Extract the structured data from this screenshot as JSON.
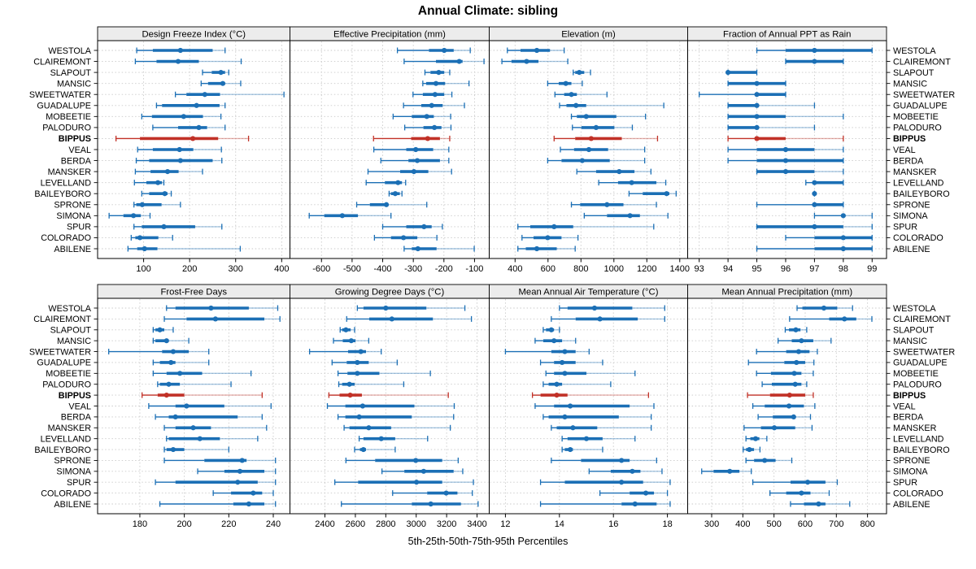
{
  "chart_data": {
    "type": "percentile-dotplot",
    "title": "Annual Climate: sibling",
    "xlabel": "5th-25th-50th-75th-95th Percentiles",
    "percentile_labels": [
      "5th",
      "25th",
      "50th",
      "75th",
      "95th"
    ],
    "highlight": "BIPPUS",
    "colors": {
      "series": "#1b6fb5",
      "highlight": "#c13127",
      "strip_bg": "#ececec",
      "grid": "#c9c9c9",
      "border": "#000000"
    },
    "locations": [
      "WESTOLA",
      "CLAIREMONT",
      "SLAPOUT",
      "MANSIC",
      "SWEETWATER",
      "GUADALUPE",
      "MOBEETIE",
      "PALODURO",
      "BIPPUS",
      "VEAL",
      "BERDA",
      "MANSKER",
      "LEVELLAND",
      "BAILEYBORO",
      "SPRONE",
      "SIMONA",
      "SPUR",
      "COLORADO",
      "ABILENE"
    ],
    "panels": [
      {
        "title": "Design Freeze Index (°C)",
        "xlim": [
          0,
          418
        ],
        "ticks": [
          100,
          200,
          300,
          400
        ],
        "values": [
          [
            85,
            120,
            180,
            250,
            277
          ],
          [
            82,
            128,
            175,
            220,
            312
          ],
          [
            228,
            248,
            268,
            277,
            285
          ],
          [
            225,
            240,
            272,
            277,
            311
          ],
          [
            169,
            193,
            233,
            266,
            405
          ],
          [
            128,
            140,
            215,
            265,
            277
          ],
          [
            96,
            118,
            187,
            229,
            268
          ],
          [
            120,
            175,
            220,
            238,
            277
          ],
          [
            40,
            92,
            207,
            262,
            328
          ],
          [
            87,
            120,
            178,
            208,
            269
          ],
          [
            84,
            112,
            180,
            250,
            270
          ],
          [
            82,
            115,
            152,
            176,
            228
          ],
          [
            80,
            106,
            131,
            140,
            144
          ],
          [
            96,
            112,
            146,
            152,
            160
          ],
          [
            79,
            84,
            97,
            139,
            180
          ],
          [
            25,
            56,
            78,
            94,
            114
          ],
          [
            79,
            96,
            144,
            212,
            270
          ],
          [
            73,
            82,
            92,
            132,
            163
          ],
          [
            66,
            86,
            102,
            130,
            310
          ]
        ]
      },
      {
        "title": "Effective Precipitation (mm)",
        "xlim": [
          -703,
          -52
        ],
        "ticks": [
          -600,
          -500,
          -400,
          -300,
          -200,
          -100
        ],
        "values": [
          [
            -352,
            -249,
            -199,
            -168,
            -114
          ],
          [
            -330,
            -226,
            -150,
            -139,
            -69
          ],
          [
            -262,
            -244,
            -217,
            -199,
            -181
          ],
          [
            -269,
            -258,
            -226,
            -196,
            -118
          ],
          [
            -301,
            -269,
            -229,
            -199,
            -174
          ],
          [
            -332,
            -274,
            -240,
            -204,
            -133
          ],
          [
            -366,
            -305,
            -256,
            -233,
            -178
          ],
          [
            -328,
            -267,
            -231,
            -208,
            -177
          ],
          [
            -430,
            -307,
            -253,
            -213,
            -181
          ],
          [
            -429,
            -323,
            -292,
            -235,
            -184
          ],
          [
            -406,
            -316,
            -287,
            -213,
            -184
          ],
          [
            -448,
            -343,
            -298,
            -251,
            -175
          ],
          [
            -454,
            -393,
            -350,
            -337,
            -325
          ],
          [
            -379,
            -373,
            -359,
            -344,
            -337
          ],
          [
            -485,
            -442,
            -388,
            -382,
            -256
          ],
          [
            -640,
            -591,
            -532,
            -481,
            -373
          ],
          [
            -400,
            -323,
            -265,
            -240,
            -205
          ],
          [
            -427,
            -373,
            -332,
            -287,
            -223
          ],
          [
            -330,
            -305,
            -285,
            -224,
            -101
          ]
        ]
      },
      {
        "title": "Elevation (m)",
        "xlim": [
          243,
          1448
        ],
        "ticks": [
          400,
          600,
          800,
          1000,
          1200,
          1400
        ],
        "values": [
          [
            353,
            433,
            532,
            612,
            698
          ],
          [
            320,
            378,
            470,
            542,
            720
          ],
          [
            753,
            765,
            790,
            820,
            858
          ],
          [
            598,
            665,
            708,
            742,
            808
          ],
          [
            642,
            698,
            742,
            775,
            958
          ],
          [
            670,
            712,
            770,
            832,
            1303
          ],
          [
            742,
            775,
            832,
            1015,
            1192
          ],
          [
            748,
            803,
            892,
            1003,
            1112
          ],
          [
            637,
            765,
            862,
            1048,
            1265
          ],
          [
            675,
            758,
            848,
            965,
            1187
          ],
          [
            598,
            682,
            808,
            975,
            1187
          ],
          [
            775,
            892,
            1032,
            1125,
            1225
          ],
          [
            908,
            1025,
            1108,
            1258,
            1315
          ],
          [
            1092,
            1175,
            1320,
            1337,
            1378
          ],
          [
            742,
            795,
            958,
            1058,
            1258
          ],
          [
            820,
            958,
            1098,
            1158,
            1328
          ],
          [
            417,
            492,
            637,
            753,
            1242
          ],
          [
            442,
            512,
            598,
            682,
            782
          ],
          [
            417,
            465,
            532,
            653,
            765
          ]
        ]
      },
      {
        "title": "Fraction of Annual PPT as Rain",
        "xlim": [
          92.6,
          99.5
        ],
        "ticks": [
          93,
          94,
          95,
          96,
          97,
          98,
          99
        ],
        "values": [
          [
            95,
            96,
            97,
            99,
            99
          ],
          [
            96,
            96,
            97,
            98,
            98
          ],
          [
            94,
            94,
            94,
            95,
            95
          ],
          [
            94,
            94,
            95,
            96,
            96
          ],
          [
            93,
            95,
            95,
            96,
            96
          ],
          [
            94,
            94,
            95,
            95,
            97
          ],
          [
            94,
            94,
            95,
            96,
            98
          ],
          [
            94,
            94,
            95,
            95,
            97
          ],
          [
            94,
            95,
            95,
            96,
            98
          ],
          [
            94,
            95,
            96,
            97,
            98
          ],
          [
            94,
            95,
            96,
            98,
            98
          ],
          [
            95,
            95,
            96,
            97,
            98
          ],
          [
            96.7,
            97,
            97,
            98,
            98
          ],
          [
            97,
            97,
            97,
            97,
            97
          ],
          [
            95,
            97,
            97,
            98,
            98
          ],
          [
            97,
            98,
            98,
            98,
            99
          ],
          [
            95,
            95,
            97,
            98,
            99
          ],
          [
            96,
            97,
            98,
            99,
            99
          ],
          [
            95,
            97,
            98,
            99,
            99
          ]
        ]
      },
      {
        "title": "Frost-Free Days",
        "xlim": [
          161,
          247.5
        ],
        "ticks": [
          180,
          200,
          220,
          240
        ],
        "values": [
          [
            192,
            196,
            212,
            229,
            242
          ],
          [
            191,
            201,
            214,
            236,
            243
          ],
          [
            186,
            187,
            189,
            191,
            195
          ],
          [
            186,
            187,
            192,
            193,
            202
          ],
          [
            166,
            190,
            195,
            202,
            211
          ],
          [
            186,
            189,
            194,
            196,
            211
          ],
          [
            186,
            192,
            198,
            208,
            230
          ],
          [
            188,
            189,
            193,
            198,
            221
          ],
          [
            181,
            188,
            192,
            200,
            235
          ],
          [
            184,
            196,
            201,
            218,
            239
          ],
          [
            187,
            193,
            196,
            224,
            235
          ],
          [
            191,
            196,
            204,
            212,
            237
          ],
          [
            192,
            193,
            207,
            216,
            233
          ],
          [
            191,
            192,
            195,
            200,
            220
          ],
          [
            191,
            209,
            226,
            228,
            241
          ],
          [
            206,
            218,
            225,
            236,
            241
          ],
          [
            187,
            196,
            224,
            233,
            241
          ],
          [
            213,
            221,
            231,
            235,
            240
          ],
          [
            189,
            222,
            229,
            236,
            241
          ]
        ]
      },
      {
        "title": "Growing Degree Days (°C)",
        "xlim": [
          2170,
          3480
        ],
        "ticks": [
          2400,
          2600,
          2800,
          3000,
          3200,
          3400
        ],
        "values": [
          [
            2613,
            2653,
            2800,
            3067,
            3320
          ],
          [
            2543,
            2691,
            2840,
            3110,
            3363
          ],
          [
            2500,
            2513,
            2538,
            2569,
            2595
          ],
          [
            2456,
            2517,
            2573,
            2601,
            2688
          ],
          [
            2299,
            2552,
            2636,
            2670,
            2770
          ],
          [
            2447,
            2543,
            2613,
            2688,
            2875
          ],
          [
            2486,
            2548,
            2613,
            2758,
            3093
          ],
          [
            2491,
            2513,
            2561,
            2595,
            2918
          ],
          [
            2426,
            2496,
            2566,
            2643,
            3211
          ],
          [
            2416,
            2534,
            2648,
            2988,
            3250
          ],
          [
            2486,
            2534,
            2625,
            2971,
            3246
          ],
          [
            2526,
            2561,
            2688,
            2835,
            3224
          ],
          [
            2625,
            2653,
            2770,
            2862,
            3075
          ],
          [
            2595,
            2630,
            2653,
            2670,
            2862
          ],
          [
            2538,
            2730,
            2997,
            3171,
            3276
          ],
          [
            2775,
            2922,
            3049,
            3246,
            3306
          ],
          [
            2465,
            2618,
            3002,
            3171,
            3376
          ],
          [
            2845,
            3072,
            3197,
            3271,
            3369
          ],
          [
            2508,
            2971,
            3096,
            3294,
            3407
          ]
        ]
      },
      {
        "title": "Mean Annual Air Temperature (°C)",
        "xlim": [
          11.4,
          18.75
        ],
        "ticks": [
          12,
          14,
          16,
          18
        ],
        "values": [
          [
            14.0,
            14.3,
            15.3,
            16.7,
            17.9
          ],
          [
            13.7,
            14.6,
            15.5,
            16.9,
            17.9
          ],
          [
            13.4,
            13.5,
            13.7,
            13.8,
            14.0
          ],
          [
            13.1,
            13.4,
            13.8,
            14.1,
            14.6
          ],
          [
            12.0,
            13.7,
            14.2,
            14.6,
            15.1
          ],
          [
            13.3,
            13.8,
            14.1,
            14.6,
            15.6
          ],
          [
            13.5,
            13.8,
            14.2,
            15.0,
            16.8
          ],
          [
            13.4,
            13.6,
            13.9,
            14.1,
            15.9
          ],
          [
            13.0,
            13.3,
            13.9,
            14.3,
            17.3
          ],
          [
            13.1,
            13.8,
            14.4,
            16.6,
            17.5
          ],
          [
            13.4,
            13.6,
            14.2,
            16.2,
            17.4
          ],
          [
            13.7,
            13.9,
            14.5,
            15.4,
            17.4
          ],
          [
            14.1,
            14.3,
            15.0,
            15.6,
            16.8
          ],
          [
            14.1,
            14.2,
            14.4,
            14.5,
            15.6
          ],
          [
            13.7,
            14.8,
            16.3,
            16.6,
            17.6
          ],
          [
            15.1,
            15.9,
            16.7,
            17.0,
            17.8
          ],
          [
            13.3,
            14.2,
            16.3,
            17.1,
            18.1
          ],
          [
            15.5,
            16.6,
            17.2,
            17.5,
            18.0
          ],
          [
            13.3,
            16.3,
            16.8,
            17.6,
            18.1
          ]
        ]
      },
      {
        "title": "Mean Annual Precipitation (mm)",
        "xlim": [
          223,
          861
        ],
        "ticks": [
          300,
          400,
          500,
          600,
          700,
          800
        ],
        "values": [
          [
            574,
            591,
            660,
            703,
            752
          ],
          [
            550,
            677,
            726,
            764,
            814
          ],
          [
            536,
            548,
            570,
            585,
            605
          ],
          [
            513,
            557,
            588,
            626,
            683
          ],
          [
            444,
            539,
            579,
            614,
            639
          ],
          [
            418,
            533,
            572,
            600,
            628
          ],
          [
            444,
            490,
            565,
            588,
            626
          ],
          [
            462,
            493,
            568,
            588,
            605
          ],
          [
            415,
            487,
            550,
            600,
            626
          ],
          [
            432,
            470,
            548,
            596,
            631
          ],
          [
            449,
            496,
            563,
            566,
            617
          ],
          [
            404,
            458,
            501,
            568,
            622
          ],
          [
            410,
            424,
            441,
            453,
            477
          ],
          [
            401,
            410,
            421,
            436,
            455
          ],
          [
            410,
            436,
            470,
            505,
            557
          ],
          [
            268,
            306,
            358,
            389,
            427
          ],
          [
            432,
            553,
            608,
            665,
            703
          ],
          [
            487,
            539,
            588,
            617,
            677
          ],
          [
            553,
            596,
            643,
            665,
            743
          ]
        ]
      }
    ]
  }
}
